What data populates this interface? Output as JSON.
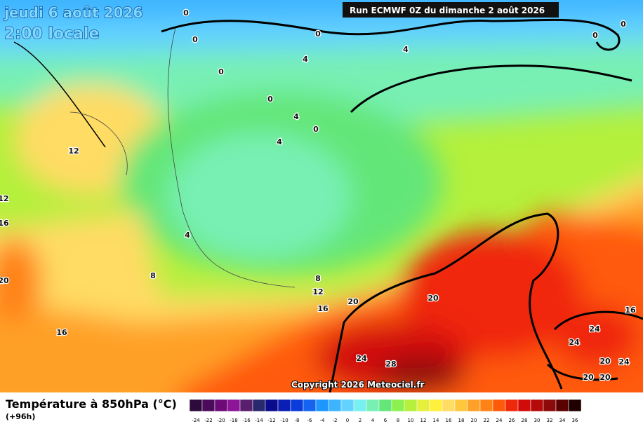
{
  "header": {
    "date": "jeudi 6 août 2026",
    "time": "2:00 locale",
    "run": "Run ECMWF 0Z du dimanche 2 août 2026"
  },
  "map": {
    "contour_labels": [
      "0",
      "0",
      "0",
      "0",
      "0",
      "0",
      "0",
      "0",
      "4",
      "4",
      "4",
      "4",
      "4",
      "8",
      "8",
      "12",
      "12",
      "12",
      "16",
      "16",
      "16",
      "16",
      "20",
      "20",
      "20",
      "24",
      "24",
      "24",
      "24",
      "28",
      "20",
      "20",
      "20"
    ]
  },
  "copyright": "Copyright 2026 Meteociel.fr",
  "legend": {
    "title": "Température à 850hPa (°C)",
    "lead": "(+96h)",
    "scale": [
      {
        "value": -24,
        "color": "#2d0a3c"
      },
      {
        "value": -22,
        "color": "#4b0a5a"
      },
      {
        "value": -20,
        "color": "#6e0a78"
      },
      {
        "value": -18,
        "color": "#8c1496"
      },
      {
        "value": -16,
        "color": "#5a1e6e"
      },
      {
        "value": -14,
        "color": "#28286e"
      },
      {
        "value": -12,
        "color": "#0a0a8c"
      },
      {
        "value": -10,
        "color": "#0a1eb4"
      },
      {
        "value": -8,
        "color": "#0a3cdc"
      },
      {
        "value": -6,
        "color": "#1464f0"
      },
      {
        "value": -4,
        "color": "#1e96ff"
      },
      {
        "value": -2,
        "color": "#3cb4ff"
      },
      {
        "value": 0,
        "color": "#64d2ff"
      },
      {
        "value": 2,
        "color": "#78f0f0"
      },
      {
        "value": 4,
        "color": "#78f0b4"
      },
      {
        "value": 6,
        "color": "#64e678"
      },
      {
        "value": 8,
        "color": "#8cf050"
      },
      {
        "value": 10,
        "color": "#b4f03c"
      },
      {
        "value": 12,
        "color": "#e6f03c"
      },
      {
        "value": 14,
        "color": "#fff03c"
      },
      {
        "value": 16,
        "color": "#ffdc64"
      },
      {
        "value": 18,
        "color": "#ffc83c"
      },
      {
        "value": 20,
        "color": "#ffa028"
      },
      {
        "value": 22,
        "color": "#ff8214"
      },
      {
        "value": 24,
        "color": "#ff5a0a"
      },
      {
        "value": 26,
        "color": "#f0280a"
      },
      {
        "value": 28,
        "color": "#d20a0a"
      },
      {
        "value": 30,
        "color": "#b40a0a"
      },
      {
        "value": 32,
        "color": "#8c0a0a"
      },
      {
        "value": 34,
        "color": "#5a0000"
      },
      {
        "value": 36,
        "color": "#1e0000"
      }
    ]
  }
}
